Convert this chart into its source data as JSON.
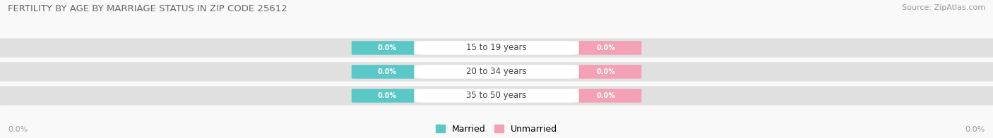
{
  "title": "FERTILITY BY AGE BY MARRIAGE STATUS IN ZIP CODE 25612",
  "source": "Source: ZipAtlas.com",
  "age_groups": [
    "15 to 19 years",
    "20 to 34 years",
    "35 to 50 years"
  ],
  "married_color": "#5bc8c8",
  "unmarried_color": "#f4a0b5",
  "bar_bg_color": "#e0e0e0",
  "background_color": "#f9f9f9",
  "title_fontsize": 9.5,
  "source_fontsize": 8,
  "axis_label_value_left": "0.0%",
  "axis_label_value_right": "0.0%",
  "legend_married": "Married",
  "legend_unmarried": "Unmarried",
  "badge_value": "0.0%"
}
